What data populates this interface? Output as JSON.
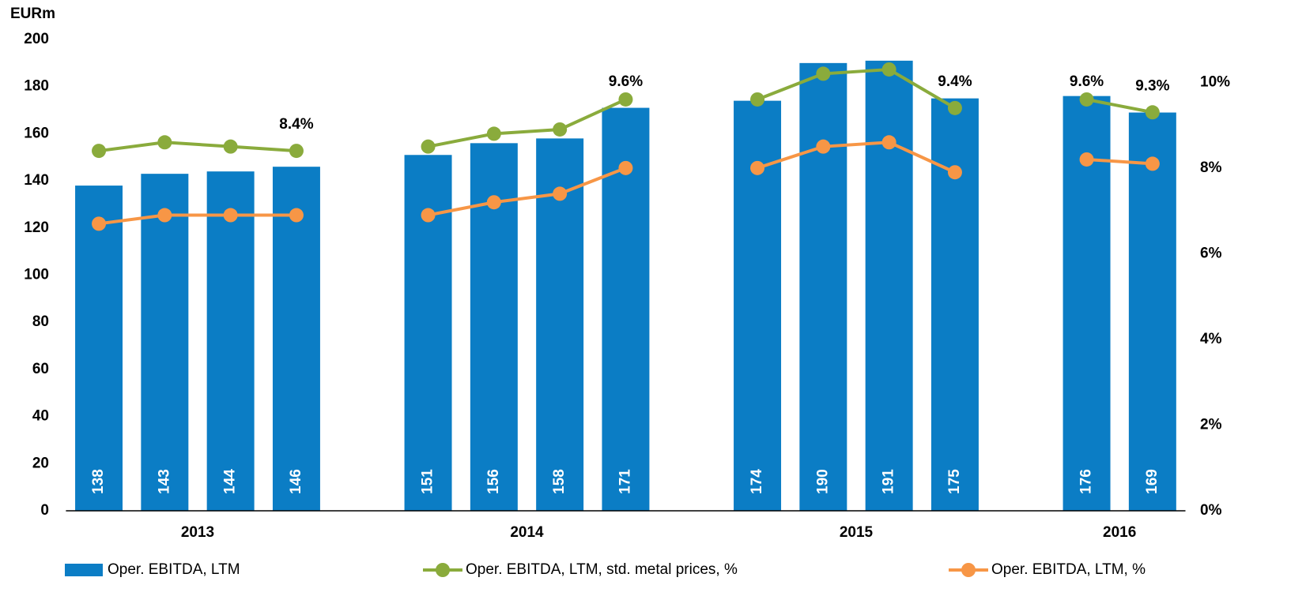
{
  "chart_data": {
    "type": "bar",
    "y_label": "EURm",
    "categories": [
      null,
      null,
      null,
      null,
      null,
      null,
      null,
      null,
      null,
      null,
      null,
      null,
      null,
      null,
      null,
      null,
      null
    ],
    "group_labels": [
      "2013",
      "2014",
      "2015",
      "2016"
    ],
    "ylim": [
      0,
      200
    ],
    "yticks": [
      0,
      20,
      40,
      60,
      80,
      100,
      120,
      140,
      160,
      180,
      200
    ],
    "y2lim": [
      0,
      11
    ],
    "y2ticks": [
      {
        "value": 0,
        "label": "0%"
      },
      {
        "value": 2,
        "label": "2%"
      },
      {
        "value": 4,
        "label": "4%"
      },
      {
        "value": 6,
        "label": "6%"
      },
      {
        "value": 8,
        "label": "8%"
      },
      {
        "value": 10,
        "label": "10%"
      }
    ],
    "series": [
      {
        "name": "Oper. EBITDA, LTM",
        "type": "bar",
        "color": "#0b7dc5",
        "values": [
          138,
          143,
          144,
          146,
          null,
          151,
          156,
          158,
          171,
          null,
          174,
          190,
          191,
          175,
          null,
          176,
          169
        ]
      },
      {
        "name": "Oper. EBITDA, LTM, std. metal prices, %",
        "type": "line",
        "axis": "y2",
        "color": "#8aab3c",
        "values": [
          8.4,
          8.6,
          8.5,
          8.4,
          null,
          8.5,
          8.8,
          8.9,
          9.6,
          null,
          9.6,
          10.2,
          10.3,
          9.4,
          null,
          9.6,
          9.3
        ],
        "value_labels": [
          null,
          null,
          null,
          "8.4%",
          null,
          null,
          null,
          null,
          "9.6%",
          null,
          null,
          null,
          null,
          "9.4%",
          null,
          "9.6%",
          "9.3%"
        ]
      },
      {
        "name": "Oper. EBITDA, LTM, %",
        "type": "line",
        "axis": "y2",
        "color": "#f79646",
        "values": [
          6.7,
          6.9,
          6.9,
          6.9,
          null,
          6.9,
          7.2,
          7.4,
          8.0,
          null,
          8.0,
          8.5,
          8.6,
          7.9,
          null,
          8.2,
          8.1
        ]
      }
    ]
  }
}
